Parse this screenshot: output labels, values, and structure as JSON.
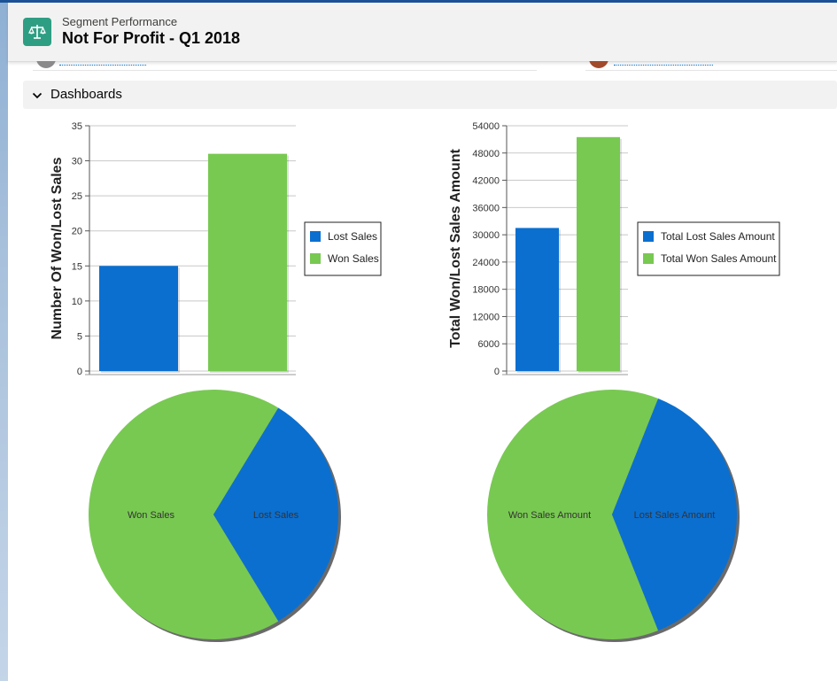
{
  "header": {
    "eyebrow": "Segment Performance",
    "title": "Not For Profit - Q1 2018",
    "icon": "scales-icon",
    "icon_color": "#2e9e83"
  },
  "section": {
    "label": "Dashboards",
    "icon": "chevron-down-icon"
  },
  "colors": {
    "lost": "#0b6fd0",
    "won": "#78c952"
  },
  "chart_data": [
    {
      "type": "bar",
      "categories": [
        "Lost Sales",
        "Won Sales"
      ],
      "values": [
        15,
        31
      ],
      "ylabel": "Number Of Won/Lost Sales",
      "xlabel": "",
      "ylim": [
        0,
        35
      ],
      "yticks": [
        0,
        5,
        10,
        15,
        20,
        25,
        30,
        35
      ],
      "legend": [
        "Lost Sales",
        "Won Sales"
      ],
      "legend_position": "right",
      "grid": true
    },
    {
      "type": "bar",
      "categories": [
        "Total Lost Sales Amount",
        "Total Won Sales Amount"
      ],
      "values": [
        31500,
        51500
      ],
      "ylabel": "Total Won/Lost Sales Amount",
      "xlabel": "",
      "ylim": [
        0,
        54000
      ],
      "yticks": [
        0,
        6000,
        12000,
        18000,
        24000,
        30000,
        36000,
        42000,
        48000,
        54000
      ],
      "legend": [
        "Total Lost Sales Amount",
        "Total Won Sales Amount"
      ],
      "legend_position": "right",
      "grid": true
    },
    {
      "type": "pie",
      "labels": [
        "Lost Sales",
        "Won Sales"
      ],
      "values": [
        15,
        31
      ]
    },
    {
      "type": "pie",
      "labels": [
        "Lost Sales Amount",
        "Won Sales Amount"
      ],
      "values": [
        31500,
        51500
      ]
    }
  ]
}
